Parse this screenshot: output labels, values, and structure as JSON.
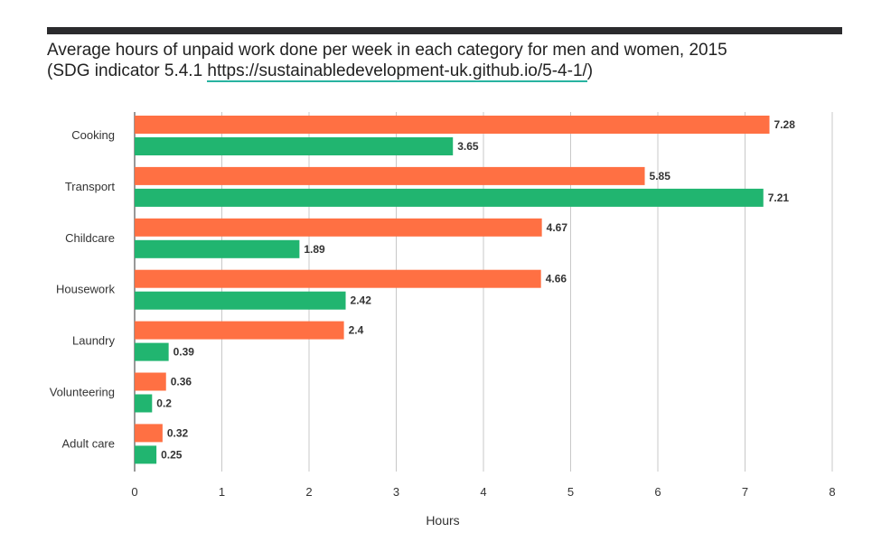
{
  "header": {
    "title": "Average hours of unpaid work done per week in each category for men and women, 2015",
    "subtitle_prefix": "(SDG indicator 5.4.1 ",
    "subtitle_link": "https://sustainabledevelopment-uk.github.io/5-4-1/",
    "subtitle_suffix": ")"
  },
  "chart_data": {
    "type": "bar",
    "orientation": "horizontal",
    "title": "Average hours of unpaid work done per week in each category for men and women, 2015",
    "xlabel": "Hours",
    "ylabel": "",
    "xlim": [
      0,
      8
    ],
    "xticks": [
      0,
      1,
      2,
      3,
      4,
      5,
      6,
      7,
      8
    ],
    "grid": "vertical",
    "categories": [
      "Cooking",
      "Transport",
      "Childcare",
      "Housework",
      "Laundry",
      "Volunteering",
      "Adult care"
    ],
    "series": [
      {
        "values": [
          7.28,
          5.85,
          4.67,
          4.66,
          2.4,
          0.36,
          0.32
        ],
        "color": "#ff7043"
      },
      {
        "values": [
          3.65,
          7.21,
          1.89,
          2.42,
          0.39,
          0.2,
          0.25
        ],
        "color": "#21b570"
      }
    ]
  }
}
